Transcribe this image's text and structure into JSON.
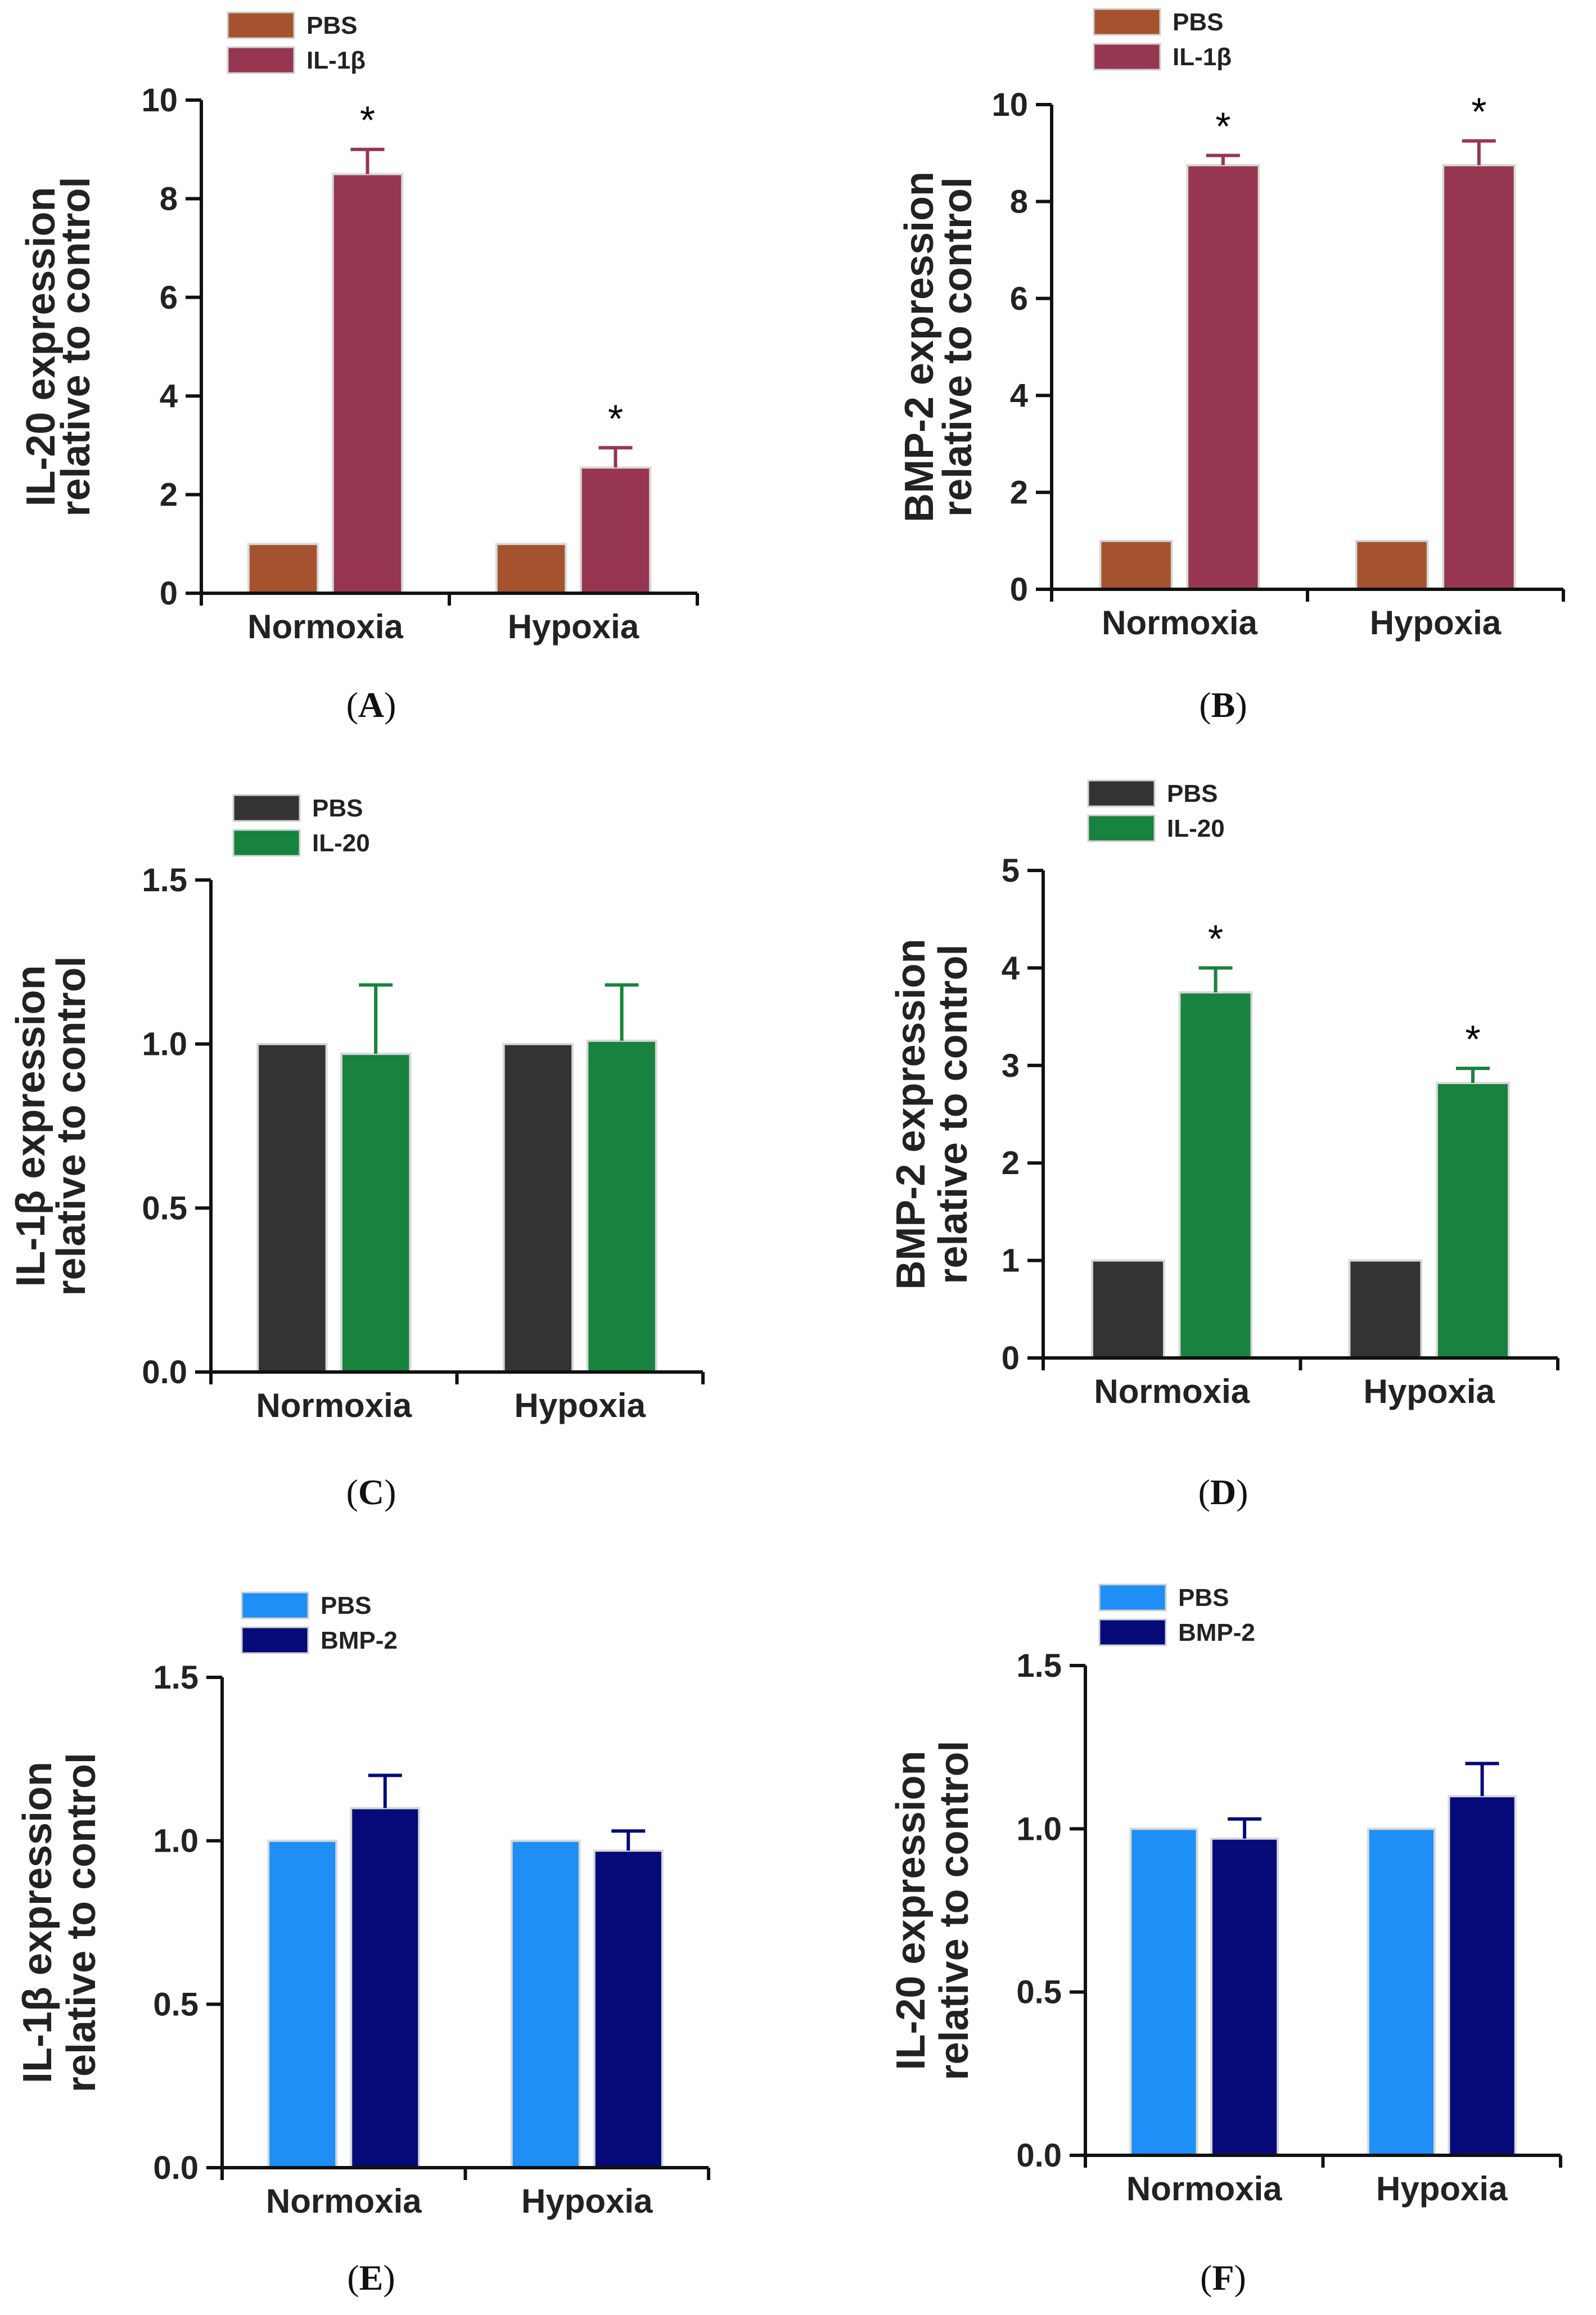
{
  "figure": {
    "x_categories": [
      "Normoxia",
      "Hypoxia"
    ],
    "significance_marker": "*",
    "panels": [
      {
        "panel_label": "A",
        "legend": [
          {
            "name": "PBS",
            "color": "#a5532f"
          },
          {
            "name": "IL-1β",
            "color": "#963650"
          }
        ],
        "ylabel_lines": [
          "IL-20 expression",
          "relative to control"
        ],
        "y_ticks": [
          "0",
          "2",
          "4",
          "6",
          "8",
          "10"
        ]
      },
      {
        "panel_label": "B",
        "legend": [
          {
            "name": "PBS",
            "color": "#a5532f"
          },
          {
            "name": "IL-1β",
            "color": "#963650"
          }
        ],
        "ylabel_lines": [
          "BMP-2 expression",
          "relative to control"
        ],
        "y_ticks": [
          "0",
          "2",
          "4",
          "6",
          "8",
          "10"
        ]
      },
      {
        "panel_label": "C",
        "legend": [
          {
            "name": "PBS",
            "color": "#333333"
          },
          {
            "name": "IL-20",
            "color": "#18823f"
          }
        ],
        "ylabel_lines": [
          "IL-1β expression",
          "relative to control"
        ],
        "y_ticks": [
          "0.0",
          "0.5",
          "1.0",
          "1.5"
        ]
      },
      {
        "panel_label": "D",
        "legend": [
          {
            "name": "PBS",
            "color": "#333333"
          },
          {
            "name": "IL-20",
            "color": "#18823f"
          }
        ],
        "ylabel_lines": [
          "BMP-2 expression",
          "relative to control"
        ],
        "y_ticks": [
          "0",
          "1",
          "2",
          "3",
          "4",
          "5"
        ]
      },
      {
        "panel_label": "E",
        "legend": [
          {
            "name": "PBS",
            "color": "#1e8ff5"
          },
          {
            "name": "BMP-2",
            "color": "#060a78"
          }
        ],
        "ylabel_lines": [
          "IL-1β expression",
          "relative to control"
        ],
        "y_ticks": [
          "0.0",
          "0.5",
          "1.0",
          "1.5"
        ]
      },
      {
        "panel_label": "F",
        "legend": [
          {
            "name": "PBS",
            "color": "#1e8ff5"
          },
          {
            "name": "BMP-2",
            "color": "#060a78"
          }
        ],
        "ylabel_lines": [
          "IL-20 expression",
          "relative to control"
        ],
        "y_ticks": [
          "0.0",
          "0.5",
          "1.0",
          "1.5"
        ]
      }
    ]
  },
  "chart_data": [
    {
      "type": "bar",
      "panel": "A",
      "categories": [
        "Normoxia",
        "Hypoxia"
      ],
      "series": [
        {
          "name": "PBS",
          "values": [
            1.0,
            1.0
          ],
          "errors": [
            0,
            0
          ]
        },
        {
          "name": "IL-1β",
          "values": [
            8.5,
            2.55
          ],
          "errors": [
            0.5,
            0.4
          ],
          "significant": [
            true,
            true
          ]
        }
      ],
      "ylabel": "IL-20 expression relative to control",
      "ylim": [
        0,
        10
      ]
    },
    {
      "type": "bar",
      "panel": "B",
      "categories": [
        "Normoxia",
        "Hypoxia"
      ],
      "series": [
        {
          "name": "PBS",
          "values": [
            1.0,
            1.0
          ],
          "errors": [
            0,
            0
          ]
        },
        {
          "name": "IL-1β",
          "values": [
            8.75,
            8.75
          ],
          "errors": [
            0.2,
            0.5
          ],
          "significant": [
            true,
            true
          ]
        }
      ],
      "ylabel": "BMP-2 expression relative to control",
      "ylim": [
        0,
        10
      ]
    },
    {
      "type": "bar",
      "panel": "C",
      "categories": [
        "Normoxia",
        "Hypoxia"
      ],
      "series": [
        {
          "name": "PBS",
          "values": [
            1.0,
            1.0
          ],
          "errors": [
            0,
            0
          ]
        },
        {
          "name": "IL-20",
          "values": [
            0.97,
            1.01
          ],
          "errors": [
            0.21,
            0.17
          ],
          "significant": [
            false,
            false
          ]
        }
      ],
      "ylabel": "IL-1β expression relative to control",
      "ylim": [
        0,
        1.5
      ]
    },
    {
      "type": "bar",
      "panel": "D",
      "categories": [
        "Normoxia",
        "Hypoxia"
      ],
      "series": [
        {
          "name": "PBS",
          "values": [
            1.0,
            1.0
          ],
          "errors": [
            0,
            0
          ]
        },
        {
          "name": "IL-20",
          "values": [
            3.75,
            2.82
          ],
          "errors": [
            0.25,
            0.15
          ],
          "significant": [
            true,
            true
          ]
        }
      ],
      "ylabel": "BMP-2 expression relative to control",
      "ylim": [
        0,
        5
      ]
    },
    {
      "type": "bar",
      "panel": "E",
      "categories": [
        "Normoxia",
        "Hypoxia"
      ],
      "series": [
        {
          "name": "PBS",
          "values": [
            1.0,
            1.0
          ],
          "errors": [
            0,
            0
          ]
        },
        {
          "name": "BMP-2",
          "values": [
            1.1,
            0.97
          ],
          "errors": [
            0.1,
            0.06
          ],
          "significant": [
            false,
            false
          ]
        }
      ],
      "ylabel": "IL-1β expression relative to control",
      "ylim": [
        0,
        1.5
      ]
    },
    {
      "type": "bar",
      "panel": "F",
      "categories": [
        "Normoxia",
        "Hypoxia"
      ],
      "series": [
        {
          "name": "PBS",
          "values": [
            1.0,
            1.0
          ],
          "errors": [
            0,
            0
          ]
        },
        {
          "name": "BMP-2",
          "values": [
            0.97,
            1.1
          ],
          "errors": [
            0.06,
            0.1
          ],
          "significant": [
            false,
            false
          ]
        }
      ],
      "ylabel": "IL-20 expression relative to control",
      "ylim": [
        0,
        1.5
      ]
    }
  ]
}
